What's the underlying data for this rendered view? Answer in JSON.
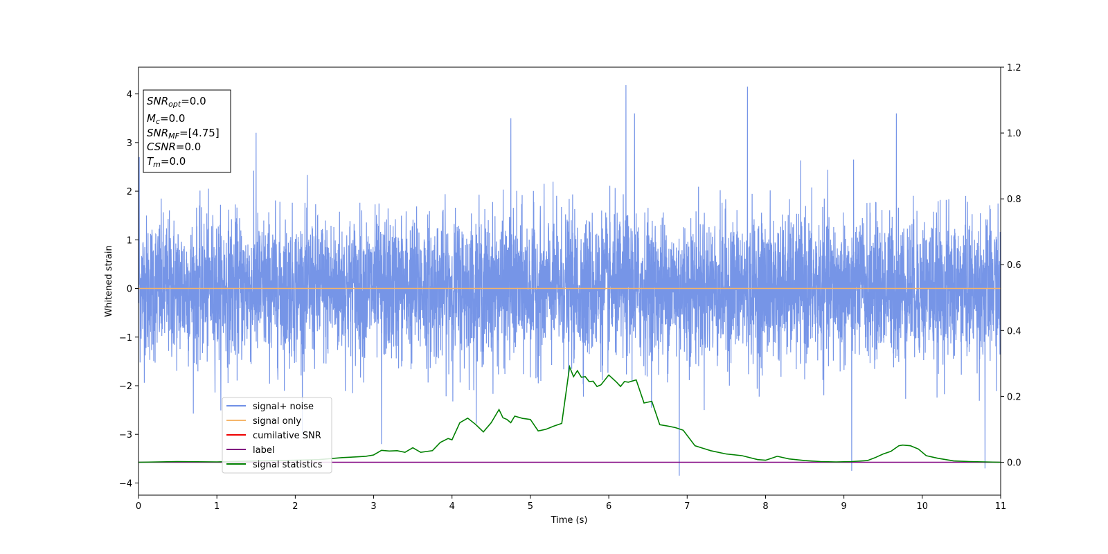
{
  "chart_data": {
    "type": "line",
    "xlabel": "Time (s)",
    "ylabel": "Whitened strain",
    "xlim": [
      0,
      11
    ],
    "ylim": [
      -4.25,
      4.55
    ],
    "y2lim": [
      -0.1,
      1.2
    ],
    "grid": false,
    "legend_position": "lower-left",
    "x_ticks": [
      "0",
      "1",
      "2",
      "3",
      "4",
      "5",
      "6",
      "7",
      "8",
      "9",
      "10",
      "11"
    ],
    "y_ticks": [
      "−4",
      "−3",
      "−2",
      "−1",
      "0",
      "1",
      "2",
      "3",
      "4"
    ],
    "y2_ticks": [
      "0.0",
      "0.2",
      "0.4",
      "0.6",
      "0.8",
      "1.0",
      "1.2"
    ],
    "info_box": [
      {
        "var": "SNR",
        "sub": "opt",
        "value": "=0.0"
      },
      {
        "var": "M",
        "sub": "c",
        "value": "=0.0"
      },
      {
        "var": "SNR",
        "sub": "MF",
        "value": "=[4.75]"
      },
      {
        "var": "CSNR",
        "sub": "",
        "value": "=0.0"
      },
      {
        "var": "T",
        "sub": "m",
        "value": "=0.0"
      }
    ],
    "series": [
      {
        "name": "signal+ noise",
        "color": "#6f8fe6",
        "axis": "left",
        "kind": "noise",
        "envelope": {
          "typical_amplitude": 1.7,
          "max": 4.18,
          "min": -3.85
        },
        "peaks": [
          [
            0.01,
            2.7
          ],
          [
            1.5,
            3.2
          ],
          [
            4.75,
            3.5
          ],
          [
            6.22,
            4.18
          ],
          [
            6.33,
            3.6
          ],
          [
            7.77,
            4.15
          ],
          [
            9.67,
            3.6
          ],
          [
            6.9,
            -3.85
          ],
          [
            10.8,
            -3.7
          ],
          [
            9.1,
            -3.75
          ],
          [
            3.1,
            -3.2
          ]
        ]
      },
      {
        "name": "signal only",
        "color": "#f5b56a",
        "axis": "left",
        "x": [
          0,
          11
        ],
        "y": [
          0,
          0
        ]
      },
      {
        "name": "cumilative SNR",
        "color": "#ee0000",
        "axis": "left",
        "x": [],
        "y": []
      },
      {
        "name": "label",
        "color": "#800080",
        "axis": "right",
        "x": [
          0,
          11
        ],
        "y": [
          0,
          0
        ]
      },
      {
        "name": "signal statistics",
        "color": "#008000",
        "axis": "right",
        "x": [
          0,
          0.5,
          1,
          1.5,
          2,
          2.3,
          2.6,
          2.75,
          2.9,
          3.0,
          3.1,
          3.2,
          3.3,
          3.4,
          3.5,
          3.6,
          3.75,
          3.85,
          3.95,
          4.0,
          4.1,
          4.2,
          4.3,
          4.4,
          4.5,
          4.6,
          4.65,
          4.7,
          4.75,
          4.8,
          4.9,
          5.0,
          5.1,
          5.2,
          5.3,
          5.4,
          5.5,
          5.55,
          5.6,
          5.65,
          5.7,
          5.75,
          5.8,
          5.85,
          5.9,
          6.0,
          6.1,
          6.15,
          6.2,
          6.25,
          6.35,
          6.45,
          6.55,
          6.65,
          6.75,
          6.85,
          6.95,
          7.1,
          7.3,
          7.5,
          7.7,
          7.9,
          8.0,
          8.05,
          8.15,
          8.3,
          8.5,
          8.7,
          8.9,
          9.1,
          9.3,
          9.4,
          9.5,
          9.6,
          9.7,
          9.75,
          9.85,
          9.95,
          10.05,
          10.2,
          10.4,
          10.6,
          10.8,
          11
        ],
        "y": [
          0.0,
          0.002,
          0.001,
          0.004,
          0.006,
          0.008,
          0.014,
          0.016,
          0.018,
          0.022,
          0.036,
          0.034,
          0.035,
          0.03,
          0.044,
          0.03,
          0.035,
          0.06,
          0.072,
          0.068,
          0.12,
          0.134,
          0.115,
          0.092,
          0.12,
          0.16,
          0.135,
          0.13,
          0.12,
          0.14,
          0.133,
          0.13,
          0.095,
          0.1,
          0.11,
          0.118,
          0.29,
          0.26,
          0.278,
          0.258,
          0.26,
          0.245,
          0.246,
          0.23,
          0.235,
          0.265,
          0.243,
          0.23,
          0.245,
          0.243,
          0.25,
          0.18,
          0.185,
          0.114,
          0.11,
          0.105,
          0.097,
          0.05,
          0.035,
          0.025,
          0.02,
          0.008,
          0.006,
          0.01,
          0.018,
          0.01,
          0.005,
          0.002,
          0.001,
          0.002,
          0.005,
          0.014,
          0.025,
          0.033,
          0.05,
          0.052,
          0.05,
          0.04,
          0.02,
          0.012,
          0.004,
          0.002,
          0.001,
          0.0
        ]
      }
    ]
  }
}
